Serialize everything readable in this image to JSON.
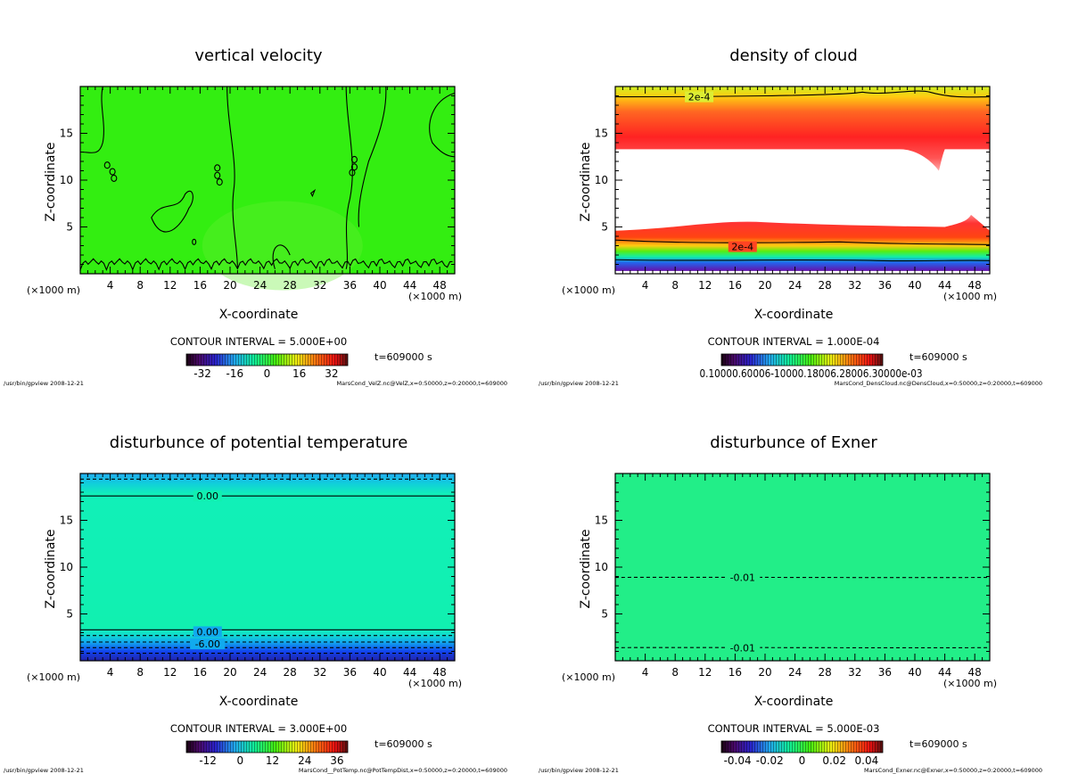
{
  "colors": {
    "green": "#33ee11",
    "red": "#ff3322",
    "cyan_green": "#11f0b0",
    "mint": "#22ee88",
    "blue": "#1144ee",
    "purple": "#6611aa"
  },
  "chart_data": [
    {
      "type": "heatmap",
      "title": "vertical velocity",
      "xlabel": "X-coordinate",
      "ylabel": "Z-coordinate",
      "x_unit": "(×1000 m)",
      "x_ticks": [
        4,
        8,
        12,
        16,
        20,
        24,
        28,
        32,
        36,
        40,
        44,
        48
      ],
      "y_ticks": [
        5,
        10,
        15
      ],
      "xlim": [
        0,
        50
      ],
      "ylim": [
        0,
        20
      ],
      "contour_interval": "CONTOUR INTERVAL = 5.000E+00",
      "time": "t=609000 s",
      "colorbar_ticks": [
        "-32",
        "-16",
        "0",
        "16",
        "32"
      ],
      "colorbar_values": [
        -32,
        -16,
        0,
        16,
        32
      ],
      "colorbar_range": [
        -40,
        40
      ],
      "footer_left": "/usr/bin/gpview  2008-12-21",
      "footer_right": "MarsCond_VelZ.nc@VelZ,x=0:50000,z=0:20000,t=609000",
      "contour_labels": []
    },
    {
      "type": "heatmap",
      "title": "density of cloud",
      "xlabel": "X-coordinate",
      "ylabel": "Z-coordinate",
      "x_unit": "(×1000 m)",
      "x_ticks": [
        4,
        8,
        12,
        16,
        20,
        24,
        28,
        32,
        36,
        40,
        44,
        48
      ],
      "y_ticks": [
        5,
        10,
        15
      ],
      "xlim": [
        0,
        50
      ],
      "ylim": [
        0,
        20
      ],
      "contour_interval": "CONTOUR INTERVAL = 1.000E-04",
      "time": "t=609000 s",
      "colorbar_ticks_text": "0.10000.60006-10000.18006.28006.30000e-03",
      "colorbar_range": [
        0,
        1
      ],
      "footer_left": "/usr/bin/gpview  2008-12-21",
      "footer_right": "MarsCond_DensCloud.nc@DensCloud,x=0:50000,z=0:20000,t=609000",
      "contour_labels": [
        {
          "text": "2e-4",
          "x": 11.2,
          "z": 18.9
        },
        {
          "text": "2e-4",
          "x": 17.0,
          "z": 2.9
        }
      ]
    },
    {
      "type": "heatmap",
      "title": "disturbunce of potential temperature",
      "xlabel": "X-coordinate",
      "ylabel": "Z-coordinate",
      "x_unit": "(×1000 m)",
      "x_ticks": [
        4,
        8,
        12,
        16,
        20,
        24,
        28,
        32,
        36,
        40,
        44,
        48
      ],
      "y_ticks": [
        5,
        10,
        15
      ],
      "xlim": [
        0,
        50
      ],
      "ylim": [
        0,
        20
      ],
      "contour_interval": "CONTOUR INTERVAL = 3.000E+00",
      "time": "t=609000 s",
      "colorbar_ticks": [
        "-12",
        "0",
        "12",
        "24",
        "36"
      ],
      "colorbar_values": [
        -12,
        0,
        12,
        24,
        36
      ],
      "colorbar_range": [
        -20,
        40
      ],
      "footer_left": "/usr/bin/gpview  2008-12-21",
      "footer_right": "MarsCond__PotTemp.nc@PotTempDist,x=0:50000,z=0:20000,t=609000",
      "contour_labels": [
        {
          "text": "0.00",
          "x": 17.0,
          "z": 17.6
        },
        {
          "text": "0.00",
          "x": 17.0,
          "z": 3.1
        },
        {
          "text": "-6.00",
          "x": 17.0,
          "z": 1.8
        }
      ]
    },
    {
      "type": "heatmap",
      "title": "disturbunce of Exner",
      "xlabel": "X-coordinate",
      "ylabel": "Z-coordinate",
      "x_unit": "(×1000 m)",
      "x_ticks": [
        4,
        8,
        12,
        16,
        20,
        24,
        28,
        32,
        36,
        40,
        44,
        48
      ],
      "y_ticks": [
        5,
        10,
        15
      ],
      "xlim": [
        0,
        50
      ],
      "ylim": [
        0,
        20
      ],
      "contour_interval": "CONTOUR INTERVAL = 5.000E-03",
      "time": "t=609000 s",
      "colorbar_ticks": [
        "-0.04",
        "-0.02",
        "0",
        "0.02",
        "0.04"
      ],
      "colorbar_values": [
        -0.04,
        -0.02,
        0,
        0.02,
        0.04
      ],
      "colorbar_range": [
        -0.05,
        0.05
      ],
      "footer_left": "/usr/bin/gpview  2008-12-21",
      "footer_right": "MarsCond_Exner.nc@Exner,x=0:50000,z=0:20000,t=609000",
      "contour_labels": [
        {
          "text": "-0.01",
          "x": 17.0,
          "z": 8.9
        },
        {
          "text": "-0.01",
          "x": 17.0,
          "z": 1.4
        }
      ]
    }
  ]
}
